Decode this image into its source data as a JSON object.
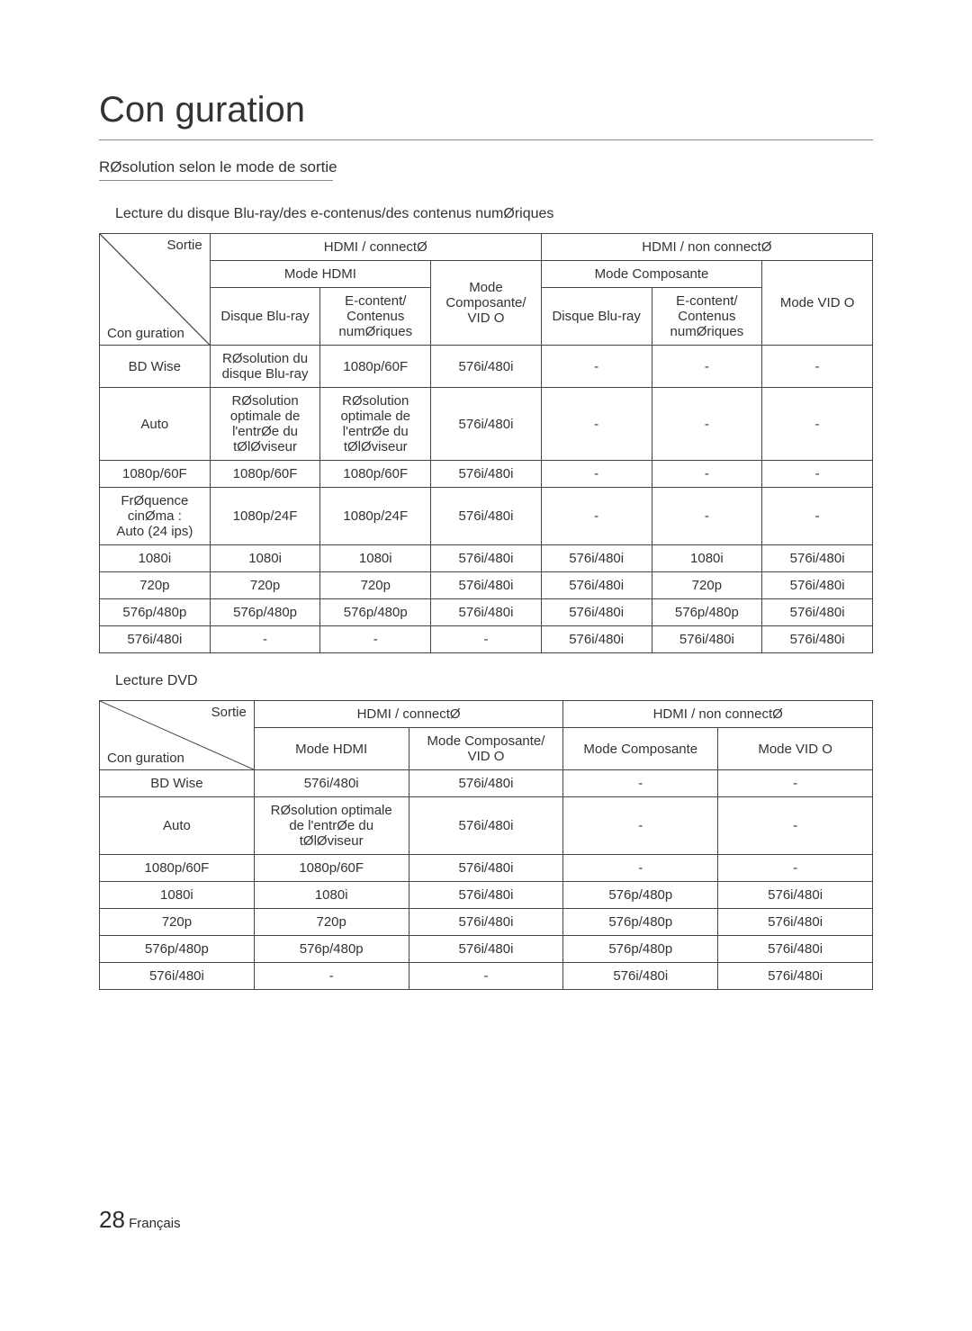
{
  "title": "Con guration",
  "subheading": "RØsolution selon le mode de sortie",
  "table1": {
    "caption": "Lecture du disque Blu-ray/des e-contenus/des contenus numØriques",
    "diag_top": "Sortie",
    "diag_bot": "Con guration",
    "group_headers": {
      "hdmi": "HDMI / connectØ",
      "non_hdmi": "HDMI / non connectØ"
    },
    "sub_headers": {
      "hdmi_mode": "Mode HDMI",
      "mode_comp_vid": "Mode\nComposante/\nVID O",
      "mode_comp": "Mode Composante",
      "mode_video": "Mode VID O"
    },
    "leaf_headers": {
      "bluray": "Disque Blu-ray",
      "econtent": "E-content/\nContenus\nnumØriques"
    },
    "rows": [
      {
        "label": "BD Wise",
        "c1": "RØsolution du\ndisque Blu-ray",
        "c2": "1080p/60F",
        "c3": "576i/480i",
        "c4": "-",
        "c5": "-",
        "c6": "-"
      },
      {
        "label": "Auto",
        "c1": "RØsolution\noptimale de\nl'entrØe du\ntØlØviseur",
        "c2": "RØsolution\noptimale de\nl'entrØe du\ntØlØviseur",
        "c3": "576i/480i",
        "c4": "-",
        "c5": "-",
        "c6": "-"
      },
      {
        "label": "1080p/60F",
        "c1": "1080p/60F",
        "c2": "1080p/60F",
        "c3": "576i/480i",
        "c4": "-",
        "c5": "-",
        "c6": "-"
      },
      {
        "label": "FrØquence\ncinØma :\nAuto (24 ips)",
        "c1": "1080p/24F",
        "c2": "1080p/24F",
        "c3": "576i/480i",
        "c4": "-",
        "c5": "-",
        "c6": "-"
      },
      {
        "label": "1080i",
        "c1": "1080i",
        "c2": "1080i",
        "c3": "576i/480i",
        "c4": "576i/480i",
        "c5": "1080i",
        "c6": "576i/480i"
      },
      {
        "label": "720p",
        "c1": "720p",
        "c2": "720p",
        "c3": "576i/480i",
        "c4": "576i/480i",
        "c5": "720p",
        "c6": "576i/480i"
      },
      {
        "label": "576p/480p",
        "c1": "576p/480p",
        "c2": "576p/480p",
        "c3": "576i/480i",
        "c4": "576i/480i",
        "c5": "576p/480p",
        "c6": "576i/480i"
      },
      {
        "label": "576i/480i",
        "c1": "-",
        "c2": "-",
        "c3": "-",
        "c4": "576i/480i",
        "c5": "576i/480i",
        "c6": "576i/480i"
      }
    ]
  },
  "table2": {
    "caption": "Lecture DVD",
    "diag_top": "Sortie",
    "diag_bot": "Con guration",
    "group_headers": {
      "hdmi": "HDMI / connectØ",
      "non_hdmi": "HDMI / non connectØ"
    },
    "sub_headers": {
      "hdmi_mode": "Mode HDMI",
      "mode_comp_vid": "Mode Composante/\nVID O",
      "mode_comp": "Mode Composante",
      "mode_video": "Mode VID O"
    },
    "rows": [
      {
        "label": "BD Wise",
        "c1": "576i/480i",
        "c2": "576i/480i",
        "c3": "-",
        "c4": "-"
      },
      {
        "label": "Auto",
        "c1": "RØsolution optimale\nde l'entrØe du\ntØlØviseur",
        "c2": "576i/480i",
        "c3": "-",
        "c4": "-"
      },
      {
        "label": "1080p/60F",
        "c1": "1080p/60F",
        "c2": "576i/480i",
        "c3": "-",
        "c4": "-"
      },
      {
        "label": "1080i",
        "c1": "1080i",
        "c2": "576i/480i",
        "c3": "576p/480p",
        "c4": "576i/480i"
      },
      {
        "label": "720p",
        "c1": "720p",
        "c2": "576i/480i",
        "c3": "576p/480p",
        "c4": "576i/480i"
      },
      {
        "label": "576p/480p",
        "c1": "576p/480p",
        "c2": "576i/480i",
        "c3": "576p/480p",
        "c4": "576i/480i"
      },
      {
        "label": "576i/480i",
        "c1": "-",
        "c2": "-",
        "c3": "576i/480i",
        "c4": "576i/480i"
      }
    ]
  },
  "footer": {
    "page_num": "28",
    "lang": "Français"
  }
}
